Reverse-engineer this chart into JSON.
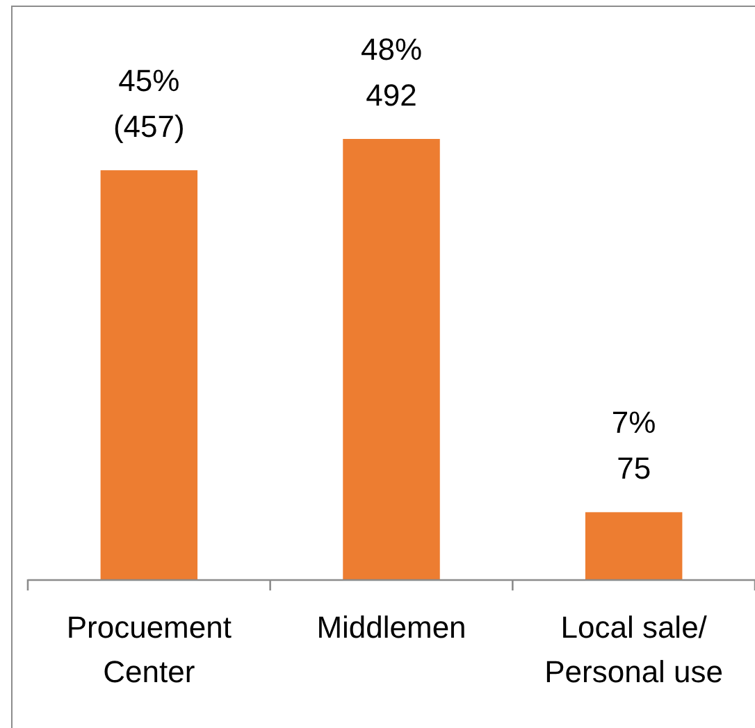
{
  "chart_data": {
    "type": "bar",
    "categories": [
      "Procuement\nCenter",
      "Middlemen",
      "Local sale/\nPersonal use"
    ],
    "values": [
      457,
      492,
      75
    ],
    "color": "#ed7d31",
    "value_labels": [
      "45%\n(457)",
      "48%\n492",
      "7%\n75"
    ]
  }
}
